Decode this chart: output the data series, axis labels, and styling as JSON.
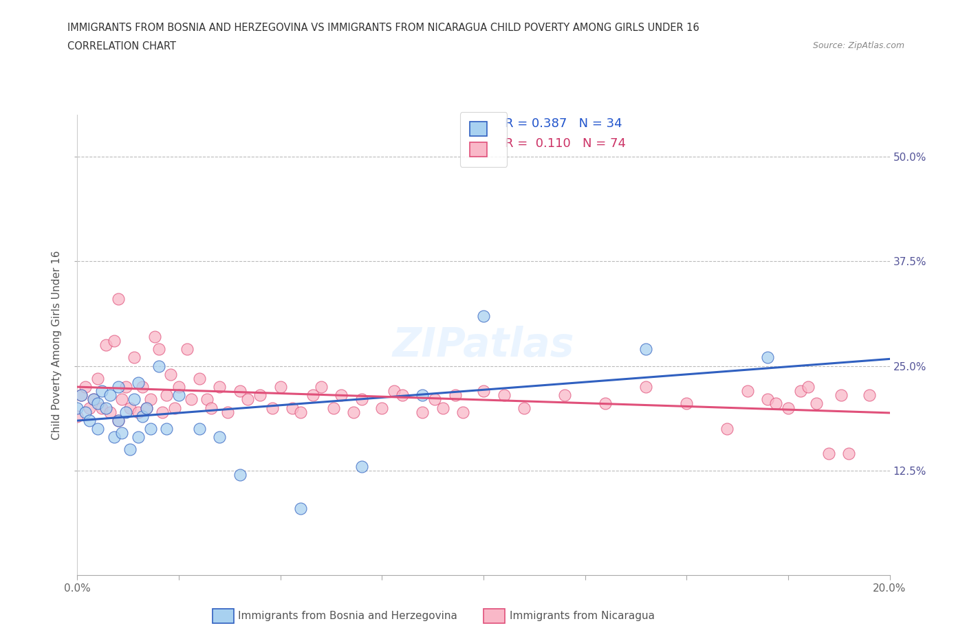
{
  "title_line1": "IMMIGRANTS FROM BOSNIA AND HERZEGOVINA VS IMMIGRANTS FROM NICARAGUA CHILD POVERTY AMONG GIRLS UNDER 16",
  "title_line2": "CORRELATION CHART",
  "source_text": "Source: ZipAtlas.com",
  "ylabel": "Child Poverty Among Girls Under 16",
  "xlim": [
    0.0,
    0.2
  ],
  "ylim": [
    0.0,
    0.55
  ],
  "y_ticks_right": [
    0.125,
    0.25,
    0.375,
    0.5
  ],
  "y_tick_labels_right": [
    "12.5%",
    "25.0%",
    "37.5%",
    "50.0%"
  ],
  "color_bosnia": "#a8d1f0",
  "color_nicaragua": "#f9b8c8",
  "color_line_bosnia": "#3060c0",
  "color_line_nicaragua": "#e0507a",
  "watermark": "ZIPatlas",
  "bosnia_x": [
    0.0,
    0.001,
    0.002,
    0.003,
    0.004,
    0.005,
    0.005,
    0.006,
    0.007,
    0.008,
    0.009,
    0.01,
    0.01,
    0.011,
    0.012,
    0.013,
    0.014,
    0.015,
    0.015,
    0.016,
    0.017,
    0.018,
    0.02,
    0.022,
    0.025,
    0.03,
    0.035,
    0.04,
    0.055,
    0.07,
    0.085,
    0.1,
    0.14,
    0.17
  ],
  "bosnia_y": [
    0.2,
    0.215,
    0.195,
    0.185,
    0.21,
    0.175,
    0.205,
    0.22,
    0.2,
    0.215,
    0.165,
    0.185,
    0.225,
    0.17,
    0.195,
    0.15,
    0.21,
    0.165,
    0.23,
    0.19,
    0.2,
    0.175,
    0.25,
    0.175,
    0.215,
    0.175,
    0.165,
    0.12,
    0.08,
    0.13,
    0.215,
    0.31,
    0.27,
    0.26
  ],
  "nicaragua_x": [
    0.0,
    0.001,
    0.002,
    0.003,
    0.004,
    0.005,
    0.006,
    0.007,
    0.008,
    0.009,
    0.01,
    0.01,
    0.011,
    0.012,
    0.013,
    0.014,
    0.015,
    0.016,
    0.017,
    0.018,
    0.019,
    0.02,
    0.021,
    0.022,
    0.023,
    0.024,
    0.025,
    0.027,
    0.028,
    0.03,
    0.032,
    0.033,
    0.035,
    0.037,
    0.04,
    0.042,
    0.045,
    0.048,
    0.05,
    0.053,
    0.055,
    0.058,
    0.06,
    0.063,
    0.065,
    0.068,
    0.07,
    0.075,
    0.078,
    0.08,
    0.085,
    0.088,
    0.09,
    0.093,
    0.095,
    0.1,
    0.105,
    0.11,
    0.12,
    0.13,
    0.14,
    0.15,
    0.16,
    0.165,
    0.17,
    0.172,
    0.175,
    0.178,
    0.18,
    0.182,
    0.185,
    0.188,
    0.19,
    0.195
  ],
  "nicaragua_y": [
    0.19,
    0.215,
    0.225,
    0.2,
    0.21,
    0.235,
    0.2,
    0.275,
    0.195,
    0.28,
    0.185,
    0.33,
    0.21,
    0.225,
    0.2,
    0.26,
    0.195,
    0.225,
    0.2,
    0.21,
    0.285,
    0.27,
    0.195,
    0.215,
    0.24,
    0.2,
    0.225,
    0.27,
    0.21,
    0.235,
    0.21,
    0.2,
    0.225,
    0.195,
    0.22,
    0.21,
    0.215,
    0.2,
    0.225,
    0.2,
    0.195,
    0.215,
    0.225,
    0.2,
    0.215,
    0.195,
    0.21,
    0.2,
    0.22,
    0.215,
    0.195,
    0.21,
    0.2,
    0.215,
    0.195,
    0.22,
    0.215,
    0.2,
    0.215,
    0.205,
    0.225,
    0.205,
    0.175,
    0.22,
    0.21,
    0.205,
    0.2,
    0.22,
    0.225,
    0.205,
    0.145,
    0.215,
    0.145,
    0.215
  ]
}
